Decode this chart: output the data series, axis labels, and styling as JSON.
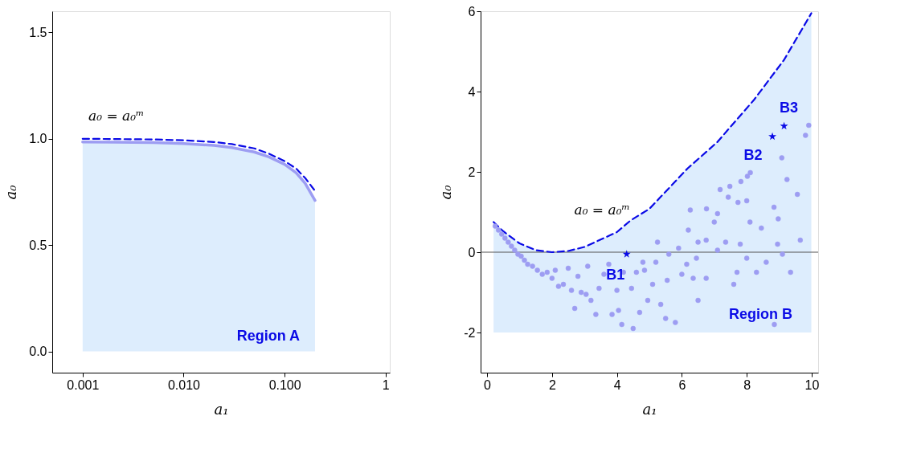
{
  "chart_data": [
    {
      "type": "line",
      "xlabel": "a₁",
      "ylabel": "a₀",
      "log": "x",
      "grid": false,
      "xlim": [
        0.0005,
        1.1
      ],
      "ylim": [
        -0.1,
        1.6
      ],
      "xticks": [
        0.001,
        {
          "value": 0.01,
          "label": "0.010"
        },
        {
          "value": 0.1,
          "label": "0.100"
        },
        1
      ],
      "yticks": [
        {
          "value": 0,
          "label": "0.0"
        },
        {
          "value": 0.5,
          "label": "0.5"
        },
        {
          "value": 1,
          "label": "1.0"
        },
        {
          "value": 1.5,
          "label": "1.5"
        }
      ],
      "series": [
        {
          "color": "#9d9df2",
          "line_style": "solid",
          "x": [
            0.001,
            0.002,
            0.005,
            0.01,
            0.02,
            0.03,
            0.05,
            0.07,
            0.1,
            0.13,
            0.16,
            0.2
          ],
          "values": [
            0.985,
            0.984,
            0.982,
            0.978,
            0.969,
            0.959,
            0.938,
            0.915,
            0.88,
            0.84,
            0.79,
            0.71
          ],
          "lower": [
            0,
            0,
            0,
            0,
            0,
            0,
            0,
            0,
            0,
            0,
            0,
            0
          ],
          "upper": [
            0.985,
            0.984,
            0.982,
            0.978,
            0.969,
            0.959,
            0.938,
            0.915,
            0.88,
            0.84,
            0.79,
            0.71
          ]
        },
        {
          "color": "#0a0ae6",
          "line_style": "dashed",
          "x": [
            0.001,
            0.002,
            0.005,
            0.01,
            0.02,
            0.03,
            0.05,
            0.07,
            0.1,
            0.13,
            0.16,
            0.2
          ],
          "values": [
            1.0,
            0.999,
            0.997,
            0.993,
            0.985,
            0.975,
            0.955,
            0.93,
            0.895,
            0.86,
            0.815,
            0.755
          ]
        }
      ],
      "annotations": [
        "a₀ = a₀ᵐ",
        "Region A"
      ]
    },
    {
      "type": "line",
      "xlabel": "a₁",
      "ylabel": "a₀",
      "grid": false,
      "xlim": [
        -0.2,
        10.2
      ],
      "ylim": [
        -3,
        6
      ],
      "xticks": [
        0,
        2,
        4,
        6,
        8,
        10
      ],
      "yticks": [
        -2,
        0,
        2,
        4,
        6
      ],
      "ref_lines": [
        {
          "axis": "y",
          "value": 0,
          "color": "#555555"
        }
      ],
      "series": [
        {
          "color": "#0a0ae6",
          "line_style": "dashed",
          "x": [
            0.2,
            0.5,
            1,
            1.5,
            2,
            2.5,
            3,
            4,
            4.42,
            5,
            6.17,
            7.09,
            8.23,
            9.15,
            9.99
          ],
          "values": [
            0.75,
            0.52,
            0.22,
            0.05,
            0,
            0.03,
            0.13,
            0.5,
            0.79,
            1.08,
            2.08,
            2.74,
            3.8,
            4.79,
            5.95
          ],
          "lower": [
            -2,
            -2,
            -2,
            -2,
            -2,
            -2,
            -2,
            -2,
            -2,
            -2,
            -2,
            -2,
            -2,
            -2,
            -2
          ],
          "upper": [
            0.75,
            0.52,
            0.22,
            0.05,
            0,
            0.03,
            0.13,
            0.5,
            0.79,
            1.08,
            2.08,
            2.74,
            3.8,
            4.79,
            5.95
          ]
        },
        {
          "type": "scatter",
          "marker": "circle",
          "color": "#9d9df2",
          "x": [
            0.25,
            0.35,
            0.45,
            0.55,
            0.65,
            0.75,
            0.85,
            0.95,
            1.05,
            1.15,
            1.25,
            1.4,
            1.55,
            1.7,
            1.85,
            2.0,
            2.1,
            2.2,
            2.35,
            2.5,
            2.6,
            2.7,
            2.8,
            2.9,
            3.05,
            3.1,
            3.2,
            3.35,
            3.45,
            3.6,
            3.75,
            3.85,
            4.0,
            4.05,
            4.15,
            4.2,
            4.45,
            4.5,
            4.6,
            4.7,
            4.8,
            4.85,
            4.95,
            5.1,
            5.2,
            5.25,
            5.35,
            5.5,
            5.55,
            5.6,
            5.8,
            5.9,
            6.0,
            6.15,
            6.2,
            6.35,
            6.45,
            6.5,
            6.5,
            6.75,
            6.75,
            7.0,
            7.1,
            7.35,
            7.6,
            7.7,
            7.8,
            8.0,
            8.1,
            8.3,
            8.45,
            8.6,
            8.85,
            8.95,
            9.1,
            9.35,
            9.65,
            6.26,
            6.76,
            7.18,
            7.48,
            7.82,
            8.02,
            8.11,
            7.43,
            7.73,
            8.0,
            8.84,
            9.08,
            9.24,
            9.56,
            9.81,
            9.91,
            7.1,
            8.97
          ],
          "values": [
            0.65,
            0.55,
            0.45,
            0.35,
            0.25,
            0.15,
            0.05,
            -0.05,
            -0.1,
            -0.2,
            -0.3,
            -0.35,
            -0.45,
            -0.55,
            -0.5,
            -0.65,
            -0.45,
            -0.85,
            -0.8,
            -0.4,
            -0.95,
            -1.4,
            -0.6,
            -1.0,
            -1.05,
            -0.35,
            -1.2,
            -1.55,
            -0.9,
            -0.55,
            -0.3,
            -1.55,
            -0.95,
            -1.45,
            -1.8,
            -0.5,
            -0.9,
            -1.9,
            -0.5,
            -1.5,
            -0.25,
            -0.45,
            -1.2,
            -0.8,
            -0.25,
            0.25,
            -1.3,
            -1.65,
            -0.7,
            -0.05,
            -1.75,
            0.1,
            -0.55,
            -0.3,
            0.55,
            -0.65,
            -0.15,
            -1.2,
            0.25,
            0.3,
            -0.65,
            0.75,
            0.05,
            0.25,
            -0.8,
            -0.5,
            0.2,
            -0.15,
            0.75,
            -0.5,
            0.6,
            -0.25,
            -1.8,
            0.2,
            -0.05,
            -0.5,
            0.3,
            1.05,
            1.08,
            1.56,
            1.64,
            1.76,
            1.89,
            1.98,
            1.37,
            1.24,
            1.28,
            1.12,
            2.35,
            1.81,
            1.44,
            2.91,
            3.16,
            0.96,
            0.83
          ]
        },
        {
          "type": "scatter",
          "marker": "star",
          "color": "#0a0ae6",
          "x": [
            4.3,
            8.79,
            9.15
          ],
          "values": [
            -0.05,
            2.88,
            3.14
          ]
        }
      ],
      "annotations": [
        "a₀ = a₀ᵐ",
        {
          "text": "B1",
          "x": 4.3,
          "y": -0.05
        },
        {
          "text": "B2",
          "x": 8.79,
          "y": 2.88
        },
        {
          "text": "B3",
          "x": 9.15,
          "y": 3.14
        },
        "Region B"
      ]
    }
  ]
}
